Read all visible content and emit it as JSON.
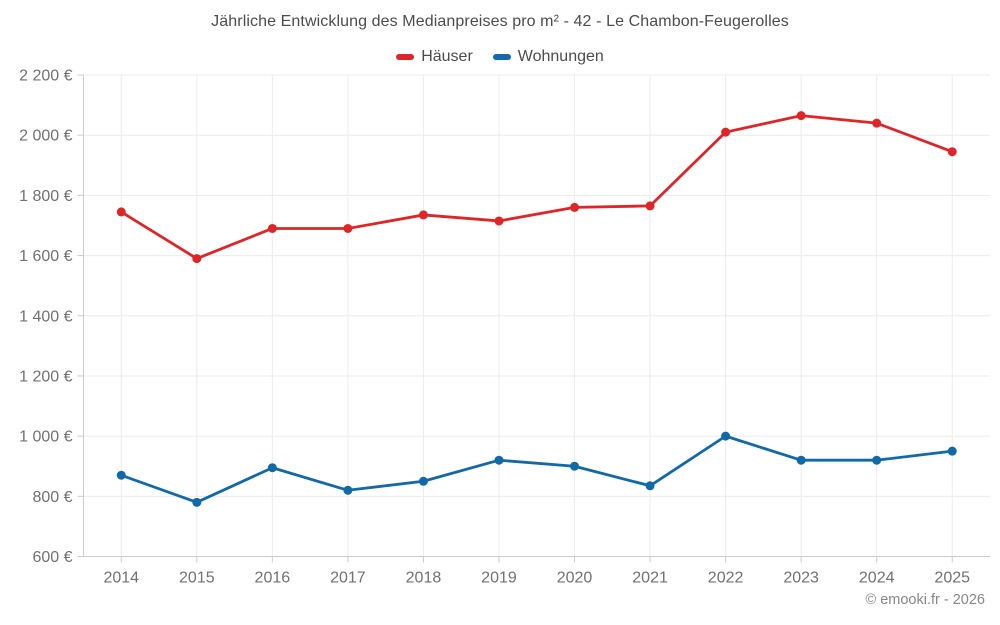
{
  "footer": {
    "copyright": "© emooki.fr - 2026"
  },
  "legend": {
    "items": [
      {
        "label": "Häuser",
        "color": "#e02528"
      },
      {
        "label": "Wohnungen",
        "color": "#1269a8"
      }
    ]
  },
  "chart_data": {
    "type": "line",
    "title": "Jährliche Entwicklung des Medianpreises pro m² - 42 - Le Chambon-Feugerolles",
    "categories": [
      "2014",
      "2015",
      "2016",
      "2017",
      "2018",
      "2019",
      "2020",
      "2021",
      "2022",
      "2023",
      "2024",
      "2025"
    ],
    "series": [
      {
        "name": "Häuser",
        "color": "#e02528",
        "values": [
          1745,
          1590,
          1690,
          1690,
          1735,
          1715,
          1760,
          1765,
          2010,
          2065,
          2040,
          1945
        ]
      },
      {
        "name": "Wohnungen",
        "color": "#1269a8",
        "values": [
          870,
          780,
          895,
          820,
          850,
          920,
          900,
          835,
          1000,
          920,
          920,
          950
        ]
      }
    ],
    "xlabel": "",
    "ylabel": "",
    "ylim": [
      600,
      2200
    ],
    "ytick_step": 200,
    "ytick_labels": [
      "600 €",
      "800 €",
      "1 000 €",
      "1 200 €",
      "1 400 €",
      "1 600 €",
      "1 800 €",
      "2 000 €",
      "2 200 €"
    ],
    "grid": true,
    "legend_position": "top",
    "currency_suffix": " €",
    "style": {
      "grid_color": "#ececec",
      "axis_color": "#cccccc",
      "tick_text_color": "#717171",
      "point_radius": 4.5,
      "line_width": 2.8
    }
  }
}
